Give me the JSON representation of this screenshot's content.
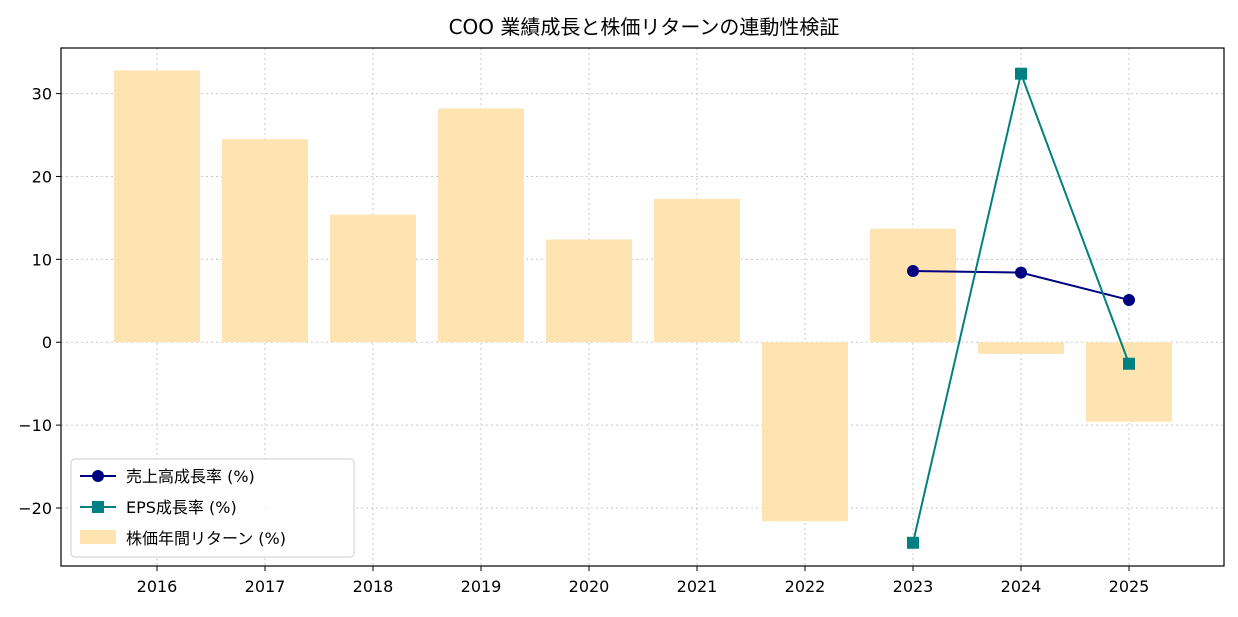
{
  "chart_data": {
    "type": "bar",
    "title": "COO 業績成長と株価リターンの連動性検証",
    "xlabel": "",
    "ylabel": "",
    "categories": [
      "2016",
      "2017",
      "2018",
      "2019",
      "2020",
      "2021",
      "2022",
      "2023",
      "2024",
      "2025"
    ],
    "ylim": [
      -27,
      35.5
    ],
    "yticks": [
      -20,
      -10,
      0,
      10,
      20,
      30
    ],
    "grid": true,
    "legend_position": "lower-left",
    "series": [
      {
        "name": "株価年間リターン (%)",
        "kind": "bar",
        "color": "#ffe4b2",
        "values": [
          32.8,
          24.5,
          15.4,
          28.2,
          12.4,
          17.3,
          -21.6,
          13.7,
          -1.4,
          -9.6
        ]
      },
      {
        "name": "売上高成長率 (%)",
        "kind": "line",
        "marker": "circle",
        "color": "#000080",
        "values": [
          null,
          null,
          null,
          null,
          null,
          null,
          null,
          8.6,
          8.4,
          5.1
        ]
      },
      {
        "name": "EPS成長率 (%)",
        "kind": "line",
        "marker": "square",
        "color": "#008080",
        "values": [
          null,
          null,
          null,
          null,
          null,
          null,
          null,
          -24.2,
          32.4,
          -2.6
        ]
      }
    ]
  }
}
